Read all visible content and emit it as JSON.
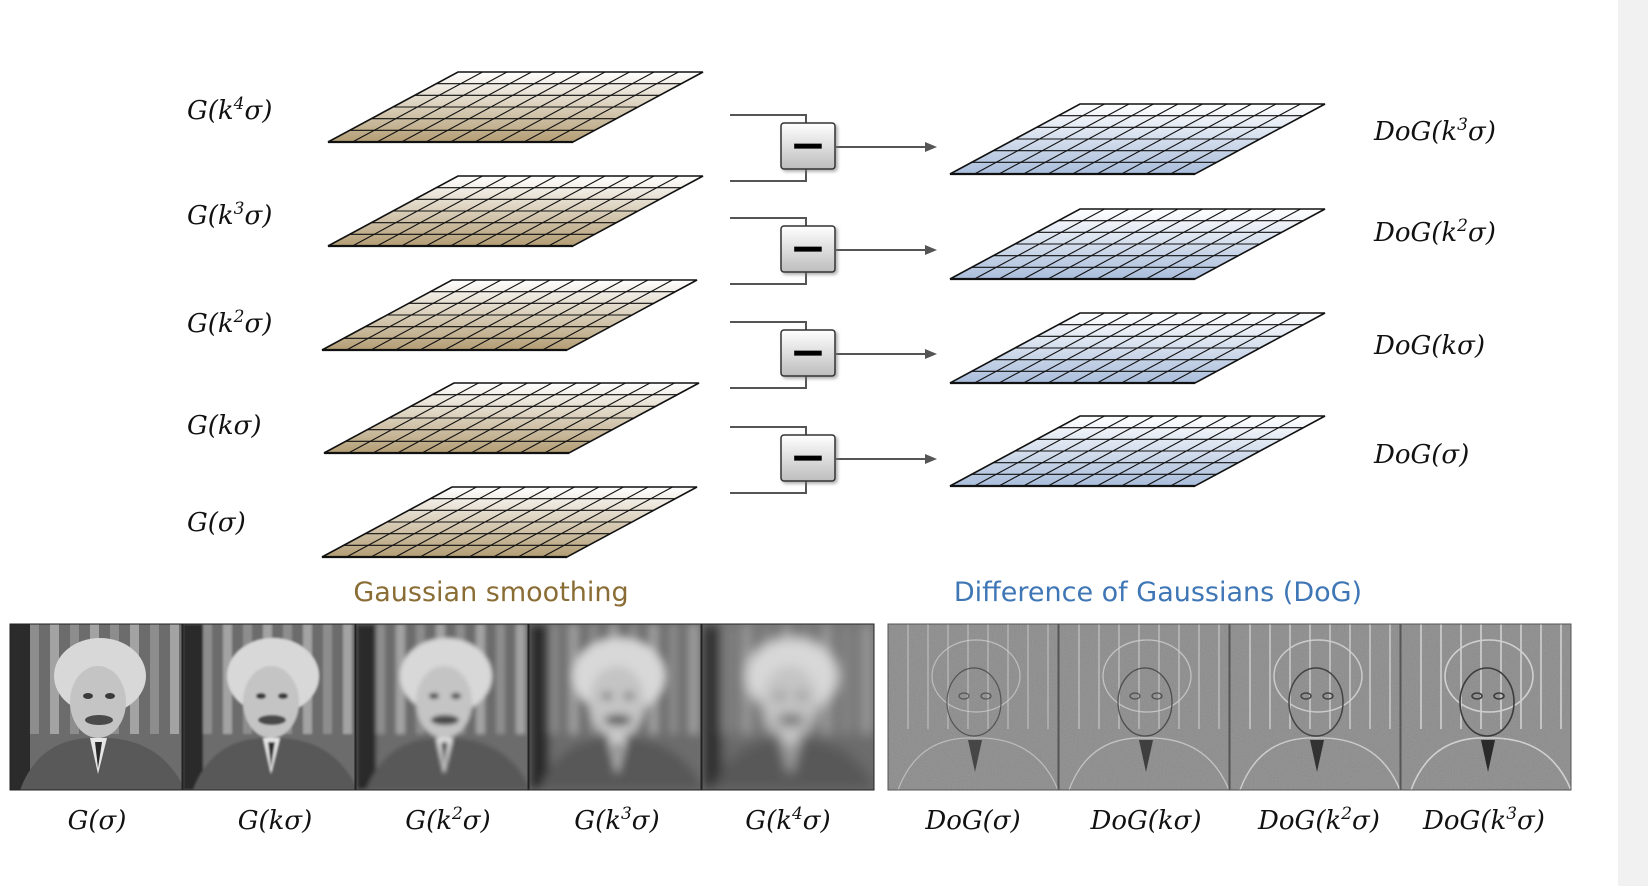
{
  "gaussian_stack": {
    "caption": "Gaussian smoothing",
    "labels": [
      {
        "base": "G(k",
        "sup": "4",
        "end": "σ)"
      },
      {
        "base": "G(k",
        "sup": "3",
        "end": "σ)"
      },
      {
        "base": "G(k",
        "sup": "2",
        "end": "σ)"
      },
      {
        "base": "G(kσ)",
        "sup": "",
        "end": ""
      },
      {
        "base": "G(σ)",
        "sup": "",
        "end": ""
      }
    ]
  },
  "dog_stack": {
    "caption": "Difference of Gaussians (DoG)",
    "labels": [
      {
        "base": "DoG(k",
        "sup": "3",
        "end": "σ)"
      },
      {
        "base": "DoG(k",
        "sup": "2",
        "end": "σ)"
      },
      {
        "base": "DoG(kσ)",
        "sup": "",
        "end": ""
      },
      {
        "base": "DoG(σ)",
        "sup": "",
        "end": ""
      }
    ]
  },
  "subtract_symbol": "−",
  "gaussian_images": [
    {
      "base": "G(σ)",
      "sup": "",
      "end": ""
    },
    {
      "base": "G(kσ)",
      "sup": "",
      "end": ""
    },
    {
      "base": "G(k",
      "sup": "2",
      "end": "σ)"
    },
    {
      "base": "G(k",
      "sup": "3",
      "end": "σ)"
    },
    {
      "base": "G(k",
      "sup": "4",
      "end": "σ)"
    }
  ],
  "dog_images": [
    {
      "base": "DoG(σ)",
      "sup": "",
      "end": ""
    },
    {
      "base": "DoG(kσ)",
      "sup": "",
      "end": ""
    },
    {
      "base": "DoG(k",
      "sup": "2",
      "end": "σ)"
    },
    {
      "base": "DoG(k",
      "sup": "3",
      "end": "σ)"
    }
  ],
  "colors": {
    "gaussian_tint": "#b39d74",
    "dog_tint": "#a9bddb",
    "gaussian_caption": "#8a6d34",
    "dog_caption": "#3f76b5",
    "arrow": "#555555"
  }
}
